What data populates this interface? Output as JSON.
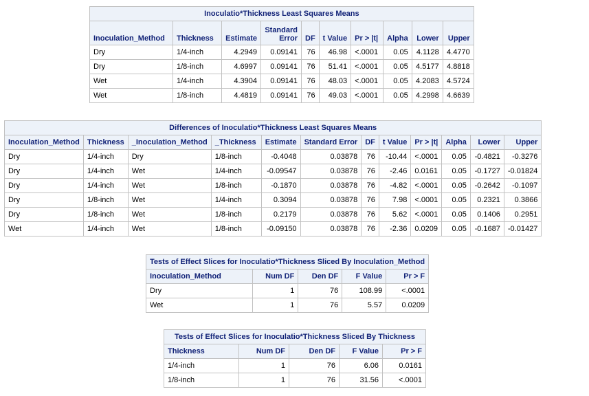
{
  "lsmeans": {
    "title": "Inoculatio*Thickness Least Squares Means",
    "headers": [
      "Inoculation_Method",
      "Thickness",
      "Estimate",
      "Standard Error",
      "DF",
      "t Value",
      "Pr > |t|",
      "Alpha",
      "Lower",
      "Upper"
    ],
    "rows": [
      [
        "Dry",
        "1/4-inch",
        "4.2949",
        "0.09141",
        "76",
        "46.98",
        "<.0001",
        "0.05",
        "4.1128",
        "4.4770"
      ],
      [
        "Dry",
        "1/8-inch",
        "4.6997",
        "0.09141",
        "76",
        "51.41",
        "<.0001",
        "0.05",
        "4.5177",
        "4.8818"
      ],
      [
        "Wet",
        "1/4-inch",
        "4.3904",
        "0.09141",
        "76",
        "48.03",
        "<.0001",
        "0.05",
        "4.2083",
        "4.5724"
      ],
      [
        "Wet",
        "1/8-inch",
        "4.4819",
        "0.09141",
        "76",
        "49.03",
        "<.0001",
        "0.05",
        "4.2998",
        "4.6639"
      ]
    ]
  },
  "diffs": {
    "title": "Differences of Inoculatio*Thickness Least Squares Means",
    "headers": [
      "Inoculation_Method",
      "Thickness",
      "_Inoculation_Method",
      "_Thickness",
      "Estimate",
      "Standard Error",
      "DF",
      "t Value",
      "Pr > |t|",
      "Alpha",
      "Lower",
      "Upper"
    ],
    "rows": [
      [
        "Dry",
        "1/4-inch",
        "Dry",
        "1/8-inch",
        "-0.4048",
        "0.03878",
        "76",
        "-10.44",
        "<.0001",
        "0.05",
        "-0.4821",
        "-0.3276"
      ],
      [
        "Dry",
        "1/4-inch",
        "Wet",
        "1/4-inch",
        "-0.09547",
        "0.03878",
        "76",
        "-2.46",
        "0.0161",
        "0.05",
        "-0.1727",
        "-0.01824"
      ],
      [
        "Dry",
        "1/4-inch",
        "Wet",
        "1/8-inch",
        "-0.1870",
        "0.03878",
        "76",
        "-4.82",
        "<.0001",
        "0.05",
        "-0.2642",
        "-0.1097"
      ],
      [
        "Dry",
        "1/8-inch",
        "Wet",
        "1/4-inch",
        "0.3094",
        "0.03878",
        "76",
        "7.98",
        "<.0001",
        "0.05",
        "0.2321",
        "0.3866"
      ],
      [
        "Dry",
        "1/8-inch",
        "Wet",
        "1/8-inch",
        "0.2179",
        "0.03878",
        "76",
        "5.62",
        "<.0001",
        "0.05",
        "0.1406",
        "0.2951"
      ],
      [
        "Wet",
        "1/4-inch",
        "Wet",
        "1/8-inch",
        "-0.09150",
        "0.03878",
        "76",
        "-2.36",
        "0.0209",
        "0.05",
        "-0.1687",
        "-0.01427"
      ]
    ]
  },
  "slice_method": {
    "title": "Tests of Effect Slices for Inoculatio*Thickness Sliced By Inoculation_Method",
    "headers": [
      "Inoculation_Method",
      "Num DF",
      "Den DF",
      "F Value",
      "Pr > F"
    ],
    "rows": [
      [
        "Dry",
        "1",
        "76",
        "108.99",
        "<.0001"
      ],
      [
        "Wet",
        "1",
        "76",
        "5.57",
        "0.0209"
      ]
    ]
  },
  "slice_thickness": {
    "title": "Tests of Effect Slices for Inoculatio*Thickness Sliced By Thickness",
    "headers": [
      "Thickness",
      "Num DF",
      "Den DF",
      "F Value",
      "Pr > F"
    ],
    "rows": [
      [
        "1/4-inch",
        "1",
        "76",
        "6.06",
        "0.0161"
      ],
      [
        "1/8-inch",
        "1",
        "76",
        "31.56",
        "<.0001"
      ]
    ]
  }
}
